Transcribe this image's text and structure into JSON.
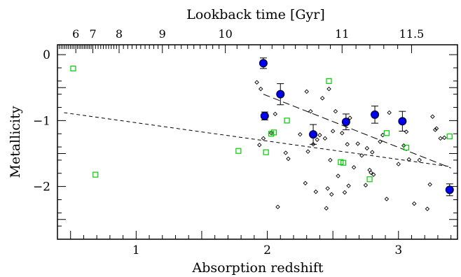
{
  "chart_data": {
    "type": "scatter",
    "title": "",
    "xlabel": "Absorption redshift",
    "ylabel": "Metallicity",
    "top_axis_label": "Lookback time [Gyr]",
    "xlim": [
      0.4,
      3.45
    ],
    "ylim": [
      -2.8,
      0.15
    ],
    "x_ticks": [
      1,
      2,
      3
    ],
    "x_tick_labels": [
      "1",
      "2",
      "3"
    ],
    "y_ticks": [
      0,
      -1,
      -2
    ],
    "y_tick_labels": [
      "0",
      "−1",
      "−2"
    ],
    "top_ticks": [
      {
        "gyr": 6,
        "z": 0.54,
        "label": "6"
      },
      {
        "gyr": 7,
        "z": 0.67,
        "label": "7"
      },
      {
        "gyr": 8,
        "z": 0.87,
        "label": "8"
      },
      {
        "gyr": 9,
        "z": 1.2,
        "label": "9"
      },
      {
        "gyr": 10,
        "z": 1.68,
        "label": "10"
      },
      {
        "gyr": 11,
        "z": 2.57,
        "label": "11"
      },
      {
        "gyr": 11.5,
        "z": 3.1,
        "label": "11.5"
      }
    ],
    "grid": false,
    "legend": "none",
    "colors": {
      "binned": "#0000ee",
      "green": "#00cc00",
      "diamond": "#000000",
      "axes": "#000000"
    },
    "series": [
      {
        "marker": "open-diamond",
        "points": [
          [
            1.92,
            -0.42
          ],
          [
            1.95,
            -0.52
          ],
          [
            1.97,
            -1.27
          ],
          [
            1.94,
            -1.37
          ],
          [
            2.03,
            -1.19
          ],
          [
            2.06,
            -0.9
          ],
          [
            2.08,
            -2.31
          ],
          [
            2.11,
            -0.58
          ],
          [
            2.14,
            -1.49
          ],
          [
            2.16,
            -1.58
          ],
          [
            2.25,
            -1.21
          ],
          [
            2.29,
            -1.95
          ],
          [
            2.3,
            -0.56
          ],
          [
            2.31,
            -1.47
          ],
          [
            2.33,
            -0.86
          ],
          [
            2.35,
            -1.36
          ],
          [
            2.37,
            -2.08
          ],
          [
            2.38,
            -1.29
          ],
          [
            2.4,
            -1.22
          ],
          [
            2.42,
            -0.66
          ],
          [
            2.44,
            -1.27
          ],
          [
            2.45,
            -2.33
          ],
          [
            2.46,
            -2.03
          ],
          [
            2.47,
            -0.52
          ],
          [
            2.48,
            -1.6
          ],
          [
            2.49,
            -2.12
          ],
          [
            2.5,
            -1.16
          ],
          [
            2.52,
            -0.86
          ],
          [
            2.54,
            -1.84
          ],
          [
            2.57,
            -1.19
          ],
          [
            2.59,
            -2.09
          ],
          [
            2.61,
            -1.36
          ],
          [
            2.62,
            -1.99
          ],
          [
            2.63,
            -0.96
          ],
          [
            2.66,
            -1.71
          ],
          [
            2.69,
            -1.35
          ],
          [
            2.72,
            -1.53
          ],
          [
            2.75,
            -1.98
          ],
          [
            2.76,
            -1.42
          ],
          [
            2.78,
            -1.75
          ],
          [
            2.79,
            -1.79
          ],
          [
            2.8,
            -1.48
          ],
          [
            2.81,
            -1.82
          ],
          [
            2.86,
            -1.32
          ],
          [
            2.88,
            -1.22
          ],
          [
            2.91,
            -2.19
          ],
          [
            2.93,
            -0.88
          ],
          [
            3.0,
            -1.66
          ],
          [
            3.04,
            -1.38
          ],
          [
            3.06,
            -1.17
          ],
          [
            3.08,
            -1.59
          ],
          [
            3.12,
            -2.26
          ],
          [
            3.16,
            -1.6
          ],
          [
            3.24,
            -1.97
          ],
          [
            3.26,
            -0.94
          ],
          [
            3.28,
            -1.14
          ],
          [
            3.29,
            -1.12
          ],
          [
            3.32,
            -1.27
          ],
          [
            3.35,
            -1.26
          ],
          [
            3.22,
            -2.34
          ]
        ]
      },
      {
        "marker": "open-square-green",
        "points": [
          [
            0.52,
            -0.21
          ],
          [
            0.69,
            -1.82
          ],
          [
            1.78,
            -1.46
          ],
          [
            1.99,
            -1.48
          ],
          [
            2.03,
            -1.2
          ],
          [
            2.05,
            -1.18
          ],
          [
            2.15,
            -1.0
          ],
          [
            2.47,
            -0.4
          ],
          [
            2.56,
            -1.63
          ],
          [
            2.58,
            -1.64
          ],
          [
            2.78,
            -1.89
          ],
          [
            2.91,
            -1.19
          ],
          [
            3.06,
            -1.41
          ],
          [
            3.39,
            -1.24
          ]
        ]
      },
      {
        "marker": "filled-circle-blue",
        "points": [
          {
            "x": 1.97,
            "y": -0.13,
            "err": 0.08
          },
          {
            "x": 1.98,
            "y": -0.93,
            "err": 0.06
          },
          {
            "x": 2.1,
            "y": -0.6,
            "err": 0.16
          },
          {
            "x": 2.35,
            "y": -1.21,
            "err": 0.15
          },
          {
            "x": 2.6,
            "y": -1.02,
            "err": 0.12
          },
          {
            "x": 2.82,
            "y": -0.91,
            "err": 0.13
          },
          {
            "x": 3.03,
            "y": -1.01,
            "err": 0.15
          },
          {
            "x": 3.39,
            "y": -2.05,
            "err": 0.09
          }
        ]
      }
    ],
    "fit_lines": [
      {
        "style": "dashed",
        "points": [
          [
            0.45,
            -0.88
          ],
          [
            3.4,
            -1.7
          ]
        ]
      },
      {
        "style": "long-dashed",
        "points": [
          [
            1.97,
            -0.6
          ],
          [
            3.4,
            -1.72
          ]
        ]
      }
    ]
  }
}
